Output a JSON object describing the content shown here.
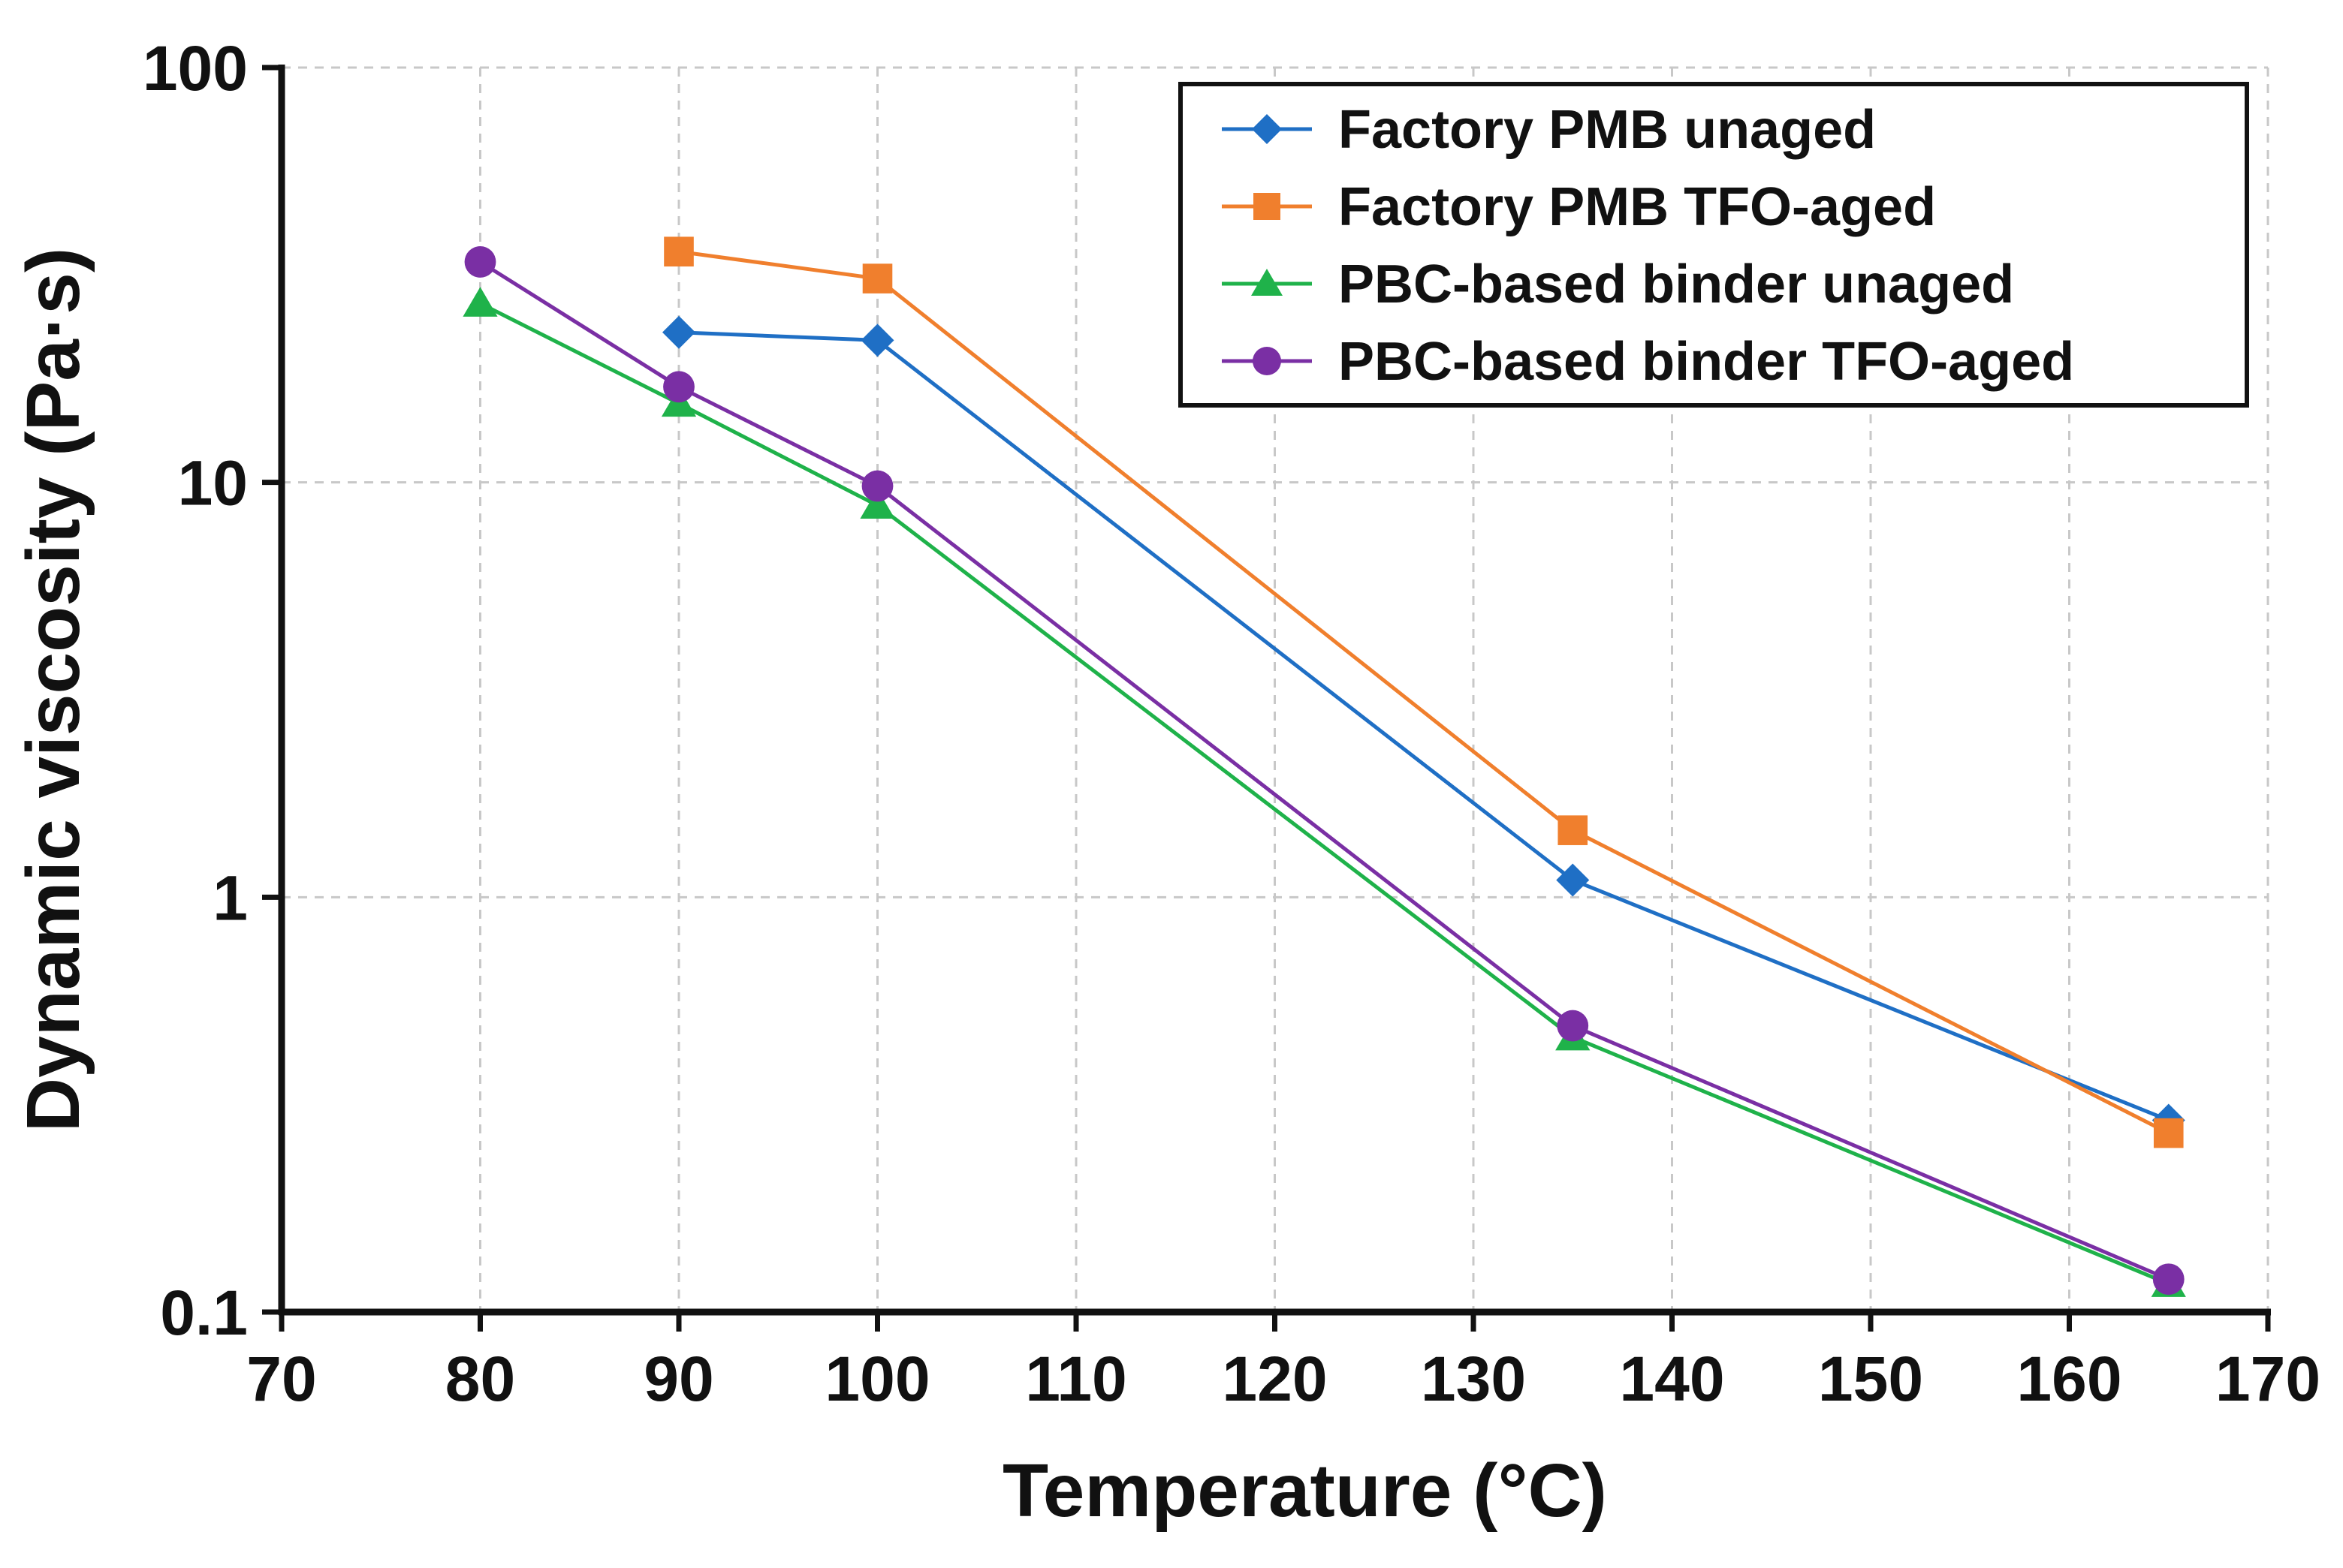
{
  "chart_data": {
    "type": "line",
    "title": "",
    "xlabel": "Temperature (°C)",
    "ylabel": "Dynamic viscosity (Pa·s)",
    "xlim": [
      70,
      170
    ],
    "ylim": [
      0.1,
      100
    ],
    "yscale": "log",
    "grid": true,
    "legend_position": "top-right",
    "x_ticks": [
      "70",
      "80",
      "90",
      "100",
      "110",
      "120",
      "130",
      "140",
      "150",
      "160",
      "170"
    ],
    "y_ticks": [
      "0.1",
      "1",
      "10",
      "100"
    ],
    "series": [
      {
        "name": "Factory PMB unaged",
        "color": "#1f6fc5",
        "marker": "diamond",
        "x": [
          90,
          100,
          135,
          165
        ],
        "y": [
          23,
          22,
          1.1,
          0.29
        ]
      },
      {
        "name": "Factory PMB TFO-aged",
        "color": "#f07f2d",
        "marker": "square",
        "x": [
          90,
          100,
          135,
          165
        ],
        "y": [
          36,
          31,
          1.45,
          0.27
        ]
      },
      {
        "name": "PBC-based binder unaged",
        "color": "#1fb24a",
        "marker": "triangle",
        "x": [
          80,
          90,
          100,
          135,
          165
        ],
        "y": [
          27,
          15.5,
          8.8,
          0.46,
          0.117
        ]
      },
      {
        "name": "PBC-based binder TFO-aged",
        "color": "#7a2fa4",
        "marker": "circle",
        "x": [
          80,
          90,
          100,
          135,
          165
        ],
        "y": [
          34,
          17,
          9.8,
          0.49,
          0.12
        ]
      }
    ]
  }
}
